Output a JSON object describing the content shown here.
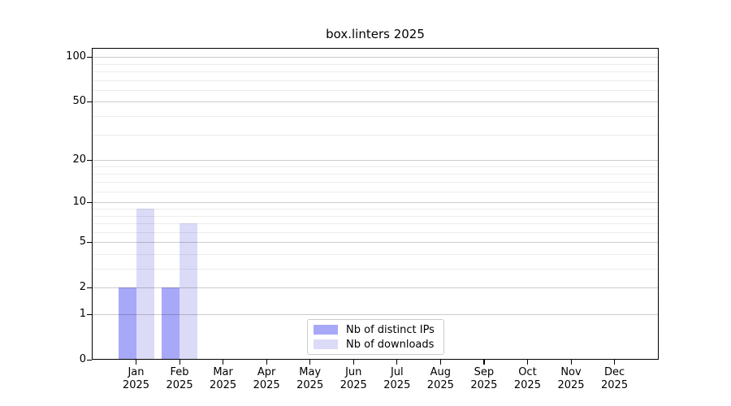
{
  "chart_data": {
    "type": "bar",
    "title": "box.linters 2025",
    "categories": [
      "Jan",
      "Feb",
      "Mar",
      "Apr",
      "May",
      "Jun",
      "Jul",
      "Aug",
      "Sep",
      "Oct",
      "Nov",
      "Dec"
    ],
    "category_year": "2025",
    "series": [
      {
        "name": "Nb of distinct IPs",
        "color": "#a8a8f8",
        "values": [
          2,
          2,
          0,
          0,
          0,
          0,
          0,
          0,
          0,
          0,
          0,
          0
        ]
      },
      {
        "name": "Nb of downloads",
        "color": "#dbdbf8",
        "values": [
          9,
          7,
          0,
          0,
          0,
          0,
          0,
          0,
          0,
          0,
          0,
          0
        ]
      }
    ],
    "y_axis": {
      "scale": "log1p",
      "major_ticks": [
        0,
        1,
        2,
        5,
        10,
        20,
        50,
        100
      ],
      "minor_ticks": [
        3,
        4,
        6,
        7,
        8,
        9,
        12,
        14,
        16,
        18,
        30,
        40,
        60,
        70,
        80,
        90
      ],
      "top_value": 115
    },
    "xlabel": "",
    "ylabel": "",
    "grid": true,
    "legend_position": "lower center"
  },
  "colors": {
    "background": "#ffffff",
    "spine": "#000000",
    "major_grid": "rgba(0,0,0,0.20)",
    "minor_grid": "rgba(0,0,0,0.07)"
  }
}
